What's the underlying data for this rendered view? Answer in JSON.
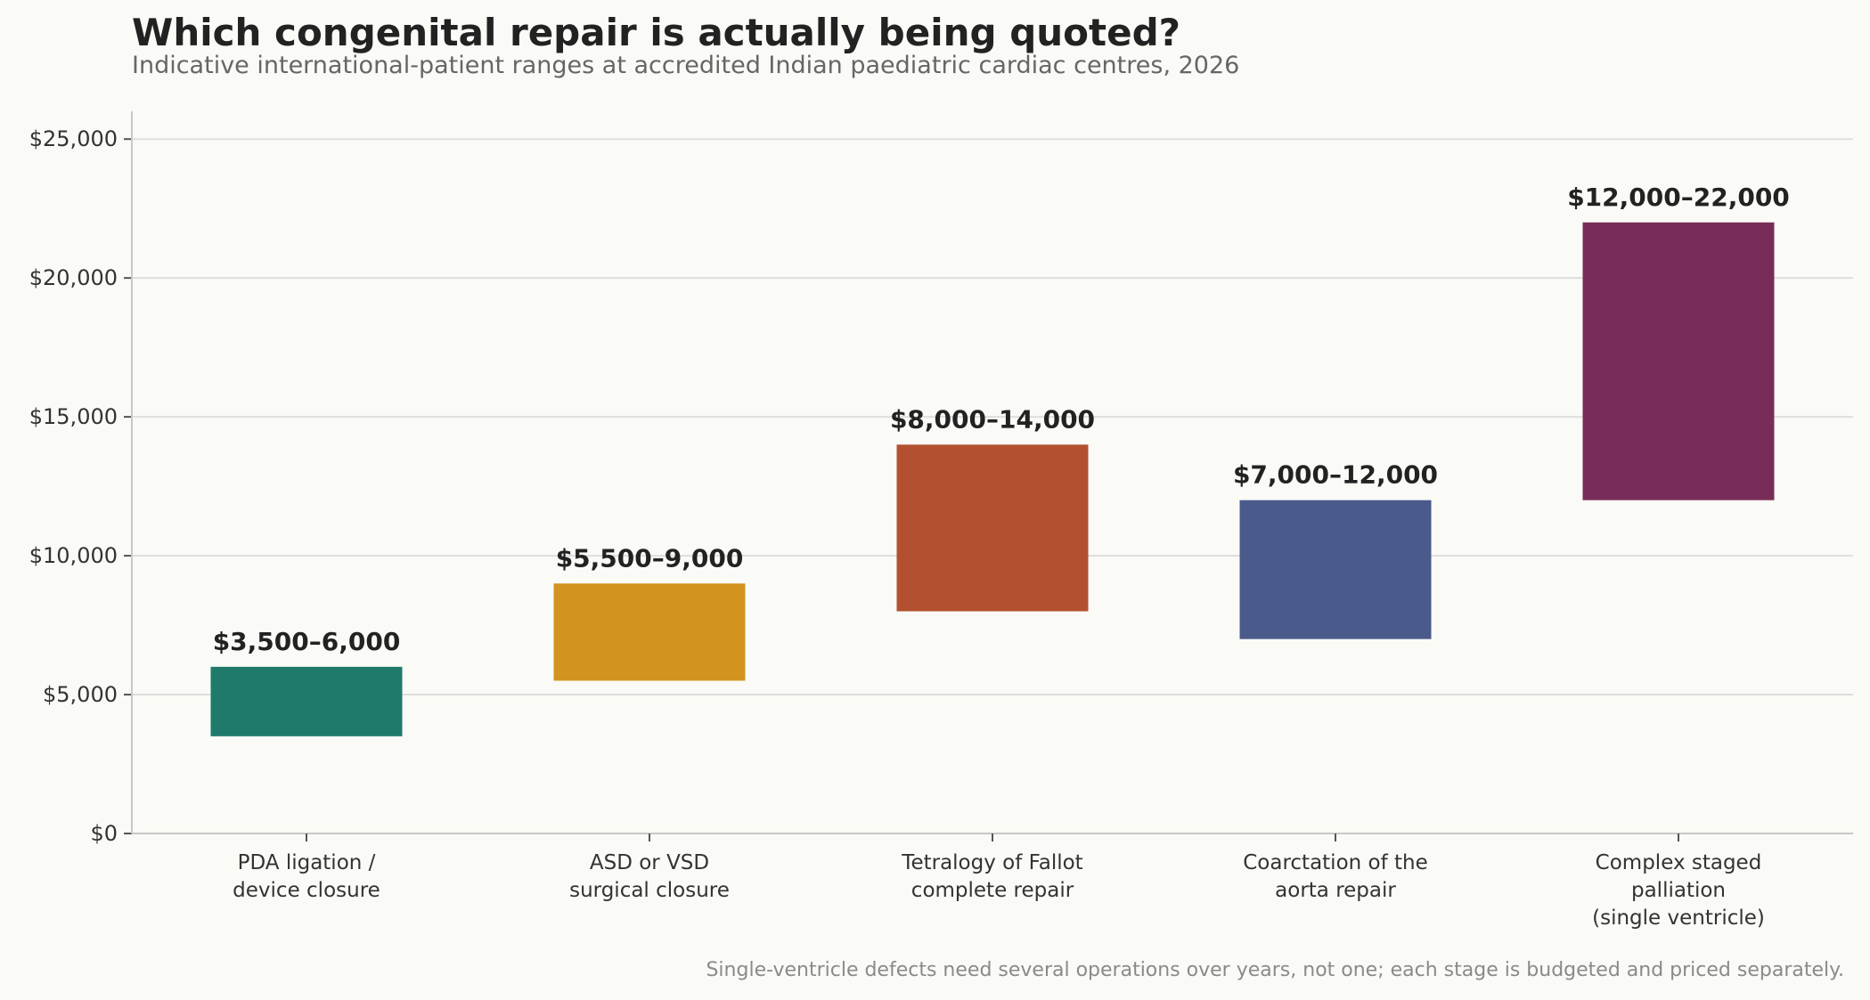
{
  "chart_data": {
    "type": "bar",
    "subtype": "floating-range",
    "title": "Which congenital repair is actually being quoted?",
    "subtitle": "Indicative international-patient ranges at accredited Indian paediatric cardiac centres, 2026",
    "categories": [
      [
        "PDA ligation /",
        "device closure"
      ],
      [
        "ASD or VSD",
        "surgical closure"
      ],
      [
        "Tetralogy of Fallot",
        "complete repair"
      ],
      [
        "Coarctation of the",
        "aorta repair"
      ],
      [
        "Complex staged",
        "palliation",
        "(single ventricle)"
      ]
    ],
    "ranges": [
      {
        "low": 3500,
        "high": 6000,
        "label": "$3,500–6,000",
        "color": "#1f7a6c"
      },
      {
        "low": 5500,
        "high": 9000,
        "label": "$5,500–9,000",
        "color": "#d3941f"
      },
      {
        "low": 8000,
        "high": 14000,
        "label": "$8,000–14,000",
        "color": "#b3502f"
      },
      {
        "low": 7000,
        "high": 12000,
        "label": "$7,000–12,000",
        "color": "#4a5a8a"
      },
      {
        "low": 12000,
        "high": 22000,
        "label": "$12,000–22,000",
        "color": "#782d58"
      }
    ],
    "ylim": [
      0,
      26000
    ],
    "yticks": [
      0,
      5000,
      10000,
      15000,
      20000,
      25000
    ],
    "ytick_labels": [
      "$0",
      "$5,000",
      "$10,000",
      "$15,000",
      "$20,000",
      "$25,000"
    ],
    "grid": true,
    "footnote": "Single-ventricle defects need several operations over years, not one; each stage is budgeted and priced separately."
  }
}
